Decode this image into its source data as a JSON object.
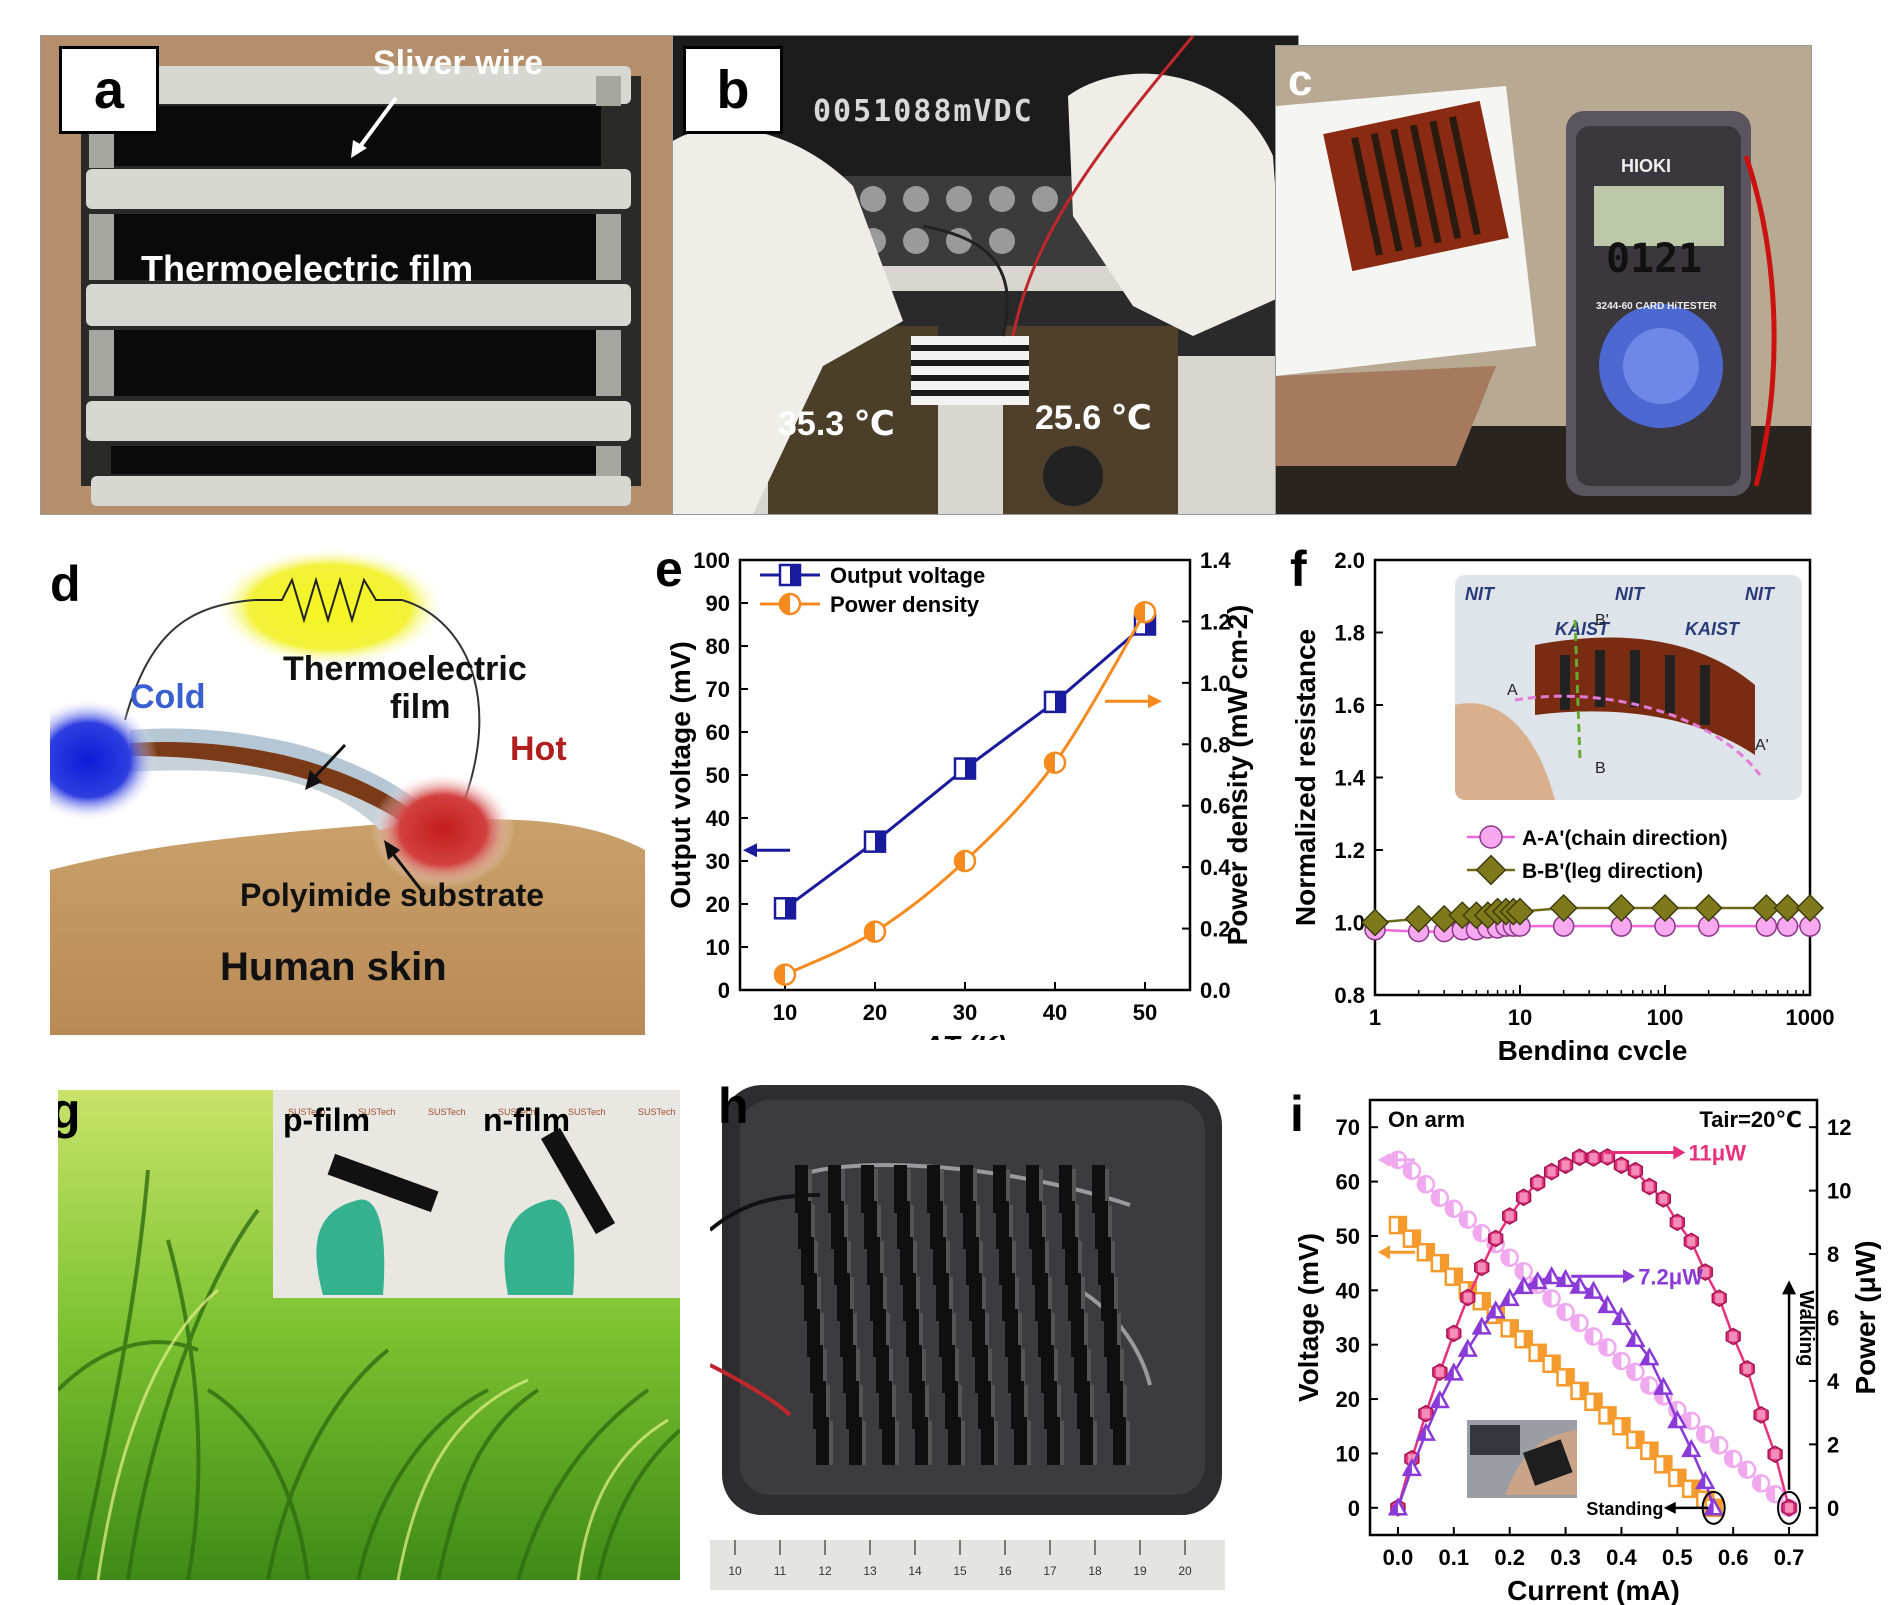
{
  "panels": {
    "a": {
      "label": "a",
      "wire_label": "Sliver wire",
      "film_label": "Thermoelectric film"
    },
    "b": {
      "label": "b",
      "display_reading": "0051088mVDC",
      "hot_temp": "35.3 ℃",
      "cold_temp": "25.6 ℃"
    },
    "c": {
      "label": "c",
      "meter_brand": "HIOKI",
      "meter_reading": "0121",
      "meter_model": "3244-60 CARD HiTESTER"
    },
    "d": {
      "label": "d",
      "cold": "Cold",
      "hot": "Hot",
      "film_line1": "Thermoelectric",
      "film_line2": "film",
      "substrate": "Polyimide substrate",
      "skin": "Human skin",
      "colors": {
        "cold": "#1a2bd6",
        "hot": "#cc1f1f",
        "skin": "#c49a64",
        "load": "#f2f21a"
      }
    },
    "e": {
      "label": "e"
    },
    "f": {
      "label": "f",
      "inset_labels": [
        "A",
        "A'",
        "B",
        "B'"
      ],
      "inset_brands": [
        "NIT",
        "KAIST"
      ]
    },
    "g": {
      "label": "g",
      "p_film": "p-film",
      "n_film": "n-film",
      "brand": "SUSTech"
    },
    "h": {
      "label": "h",
      "ruler_ticks": [
        "10",
        "11",
        "12",
        "13",
        "14",
        "15",
        "16",
        "17",
        "18",
        "19",
        "20"
      ]
    },
    "i": {
      "label": "i"
    }
  },
  "chart_data": [
    {
      "id": "e",
      "type": "line",
      "xlabel": "ΔT (K)",
      "ylabel": "Output voltage (mV)",
      "y2label": "Power density (mW cm-2)",
      "x": [
        10,
        20,
        30,
        40,
        50
      ],
      "xlim": [
        5,
        55
      ],
      "xticks": [
        10,
        20,
        30,
        40,
        50
      ],
      "ylim": [
        0,
        100
      ],
      "yticks": [
        0,
        10,
        20,
        30,
        40,
        50,
        60,
        70,
        80,
        90,
        100
      ],
      "y2lim": [
        0,
        1.4
      ],
      "y2ticks": [
        "0.0",
        "0.2",
        "0.4",
        "0.6",
        "0.8",
        "1.0",
        "1.2",
        "1.4"
      ],
      "series": [
        {
          "name": "Output voltage",
          "axis": "left",
          "color": "#1a1a9c",
          "marker": "half-square",
          "values": [
            19,
            34.5,
            51.5,
            67,
            85
          ]
        },
        {
          "name": "Power density",
          "axis": "right",
          "color": "#f58a1f",
          "marker": "half-circle",
          "values": [
            0.05,
            0.19,
            0.42,
            0.74,
            1.23
          ]
        }
      ],
      "legend": "top-left"
    },
    {
      "id": "f",
      "type": "line",
      "xlabel": "Bending cycle",
      "ylabel": "Normalized resistance",
      "xscale": "log",
      "xlim": [
        1,
        1000
      ],
      "xticks": [
        "1",
        "10",
        "100",
        "1000"
      ],
      "ylim": [
        0.8,
        2.0
      ],
      "yticks": [
        "0.8",
        "1.0",
        "1.2",
        "1.4",
        "1.6",
        "1.8",
        "2.0"
      ],
      "series": [
        {
          "name": "A-A'(chain direction)",
          "color": "#f7a8ef",
          "line": "#ee66dd",
          "marker": "circle",
          "x": [
            1,
            2,
            3,
            4,
            5,
            6,
            7,
            8,
            9,
            10,
            20,
            50,
            100,
            200,
            500,
            700,
            1000
          ],
          "values": [
            0.98,
            0.975,
            0.975,
            0.98,
            0.98,
            0.985,
            0.985,
            0.99,
            0.99,
            0.99,
            0.99,
            0.99,
            0.99,
            0.99,
            0.99,
            0.99,
            0.99
          ]
        },
        {
          "name": "B-B'(leg direction)",
          "color": "#7e7a1c",
          "line": "#6b6b1a",
          "marker": "diamond",
          "x": [
            1,
            2,
            3,
            4,
            5,
            6,
            7,
            8,
            9,
            10,
            20,
            50,
            100,
            200,
            500,
            700,
            1000
          ],
          "values": [
            1.0,
            1.01,
            1.01,
            1.02,
            1.02,
            1.02,
            1.03,
            1.03,
            1.03,
            1.03,
            1.04,
            1.04,
            1.04,
            1.04,
            1.04,
            1.04,
            1.04
          ]
        }
      ],
      "legend": "middle-right"
    },
    {
      "id": "i",
      "type": "line",
      "xlabel": "Current (mA)",
      "ylabel": "Voltage (mV)",
      "y2label": "Power (μW)",
      "xlim": [
        -0.05,
        0.75
      ],
      "xticks": [
        "0.0",
        "0.1",
        "0.2",
        "0.3",
        "0.4",
        "0.5",
        "0.6",
        "0.7"
      ],
      "ylim": [
        -5,
        75
      ],
      "yticks": [
        0,
        10,
        20,
        30,
        40,
        50,
        60,
        70
      ],
      "y2lim": [
        -0.857,
        12.857
      ],
      "y2ticks": [
        0,
        2,
        4,
        6,
        8,
        10,
        12
      ],
      "series": [
        {
          "name": "Walking voltage",
          "axis": "left",
          "color": "#f0a8ee",
          "marker": "half-circle",
          "x": [
            0.0,
            0.025,
            0.05,
            0.075,
            0.1,
            0.125,
            0.15,
            0.175,
            0.2,
            0.225,
            0.25,
            0.275,
            0.3,
            0.325,
            0.35,
            0.375,
            0.4,
            0.425,
            0.45,
            0.475,
            0.5,
            0.525,
            0.55,
            0.575,
            0.6,
            0.625,
            0.65,
            0.675,
            0.7
          ],
          "values": [
            64,
            62,
            59.5,
            57,
            55,
            53,
            50.5,
            48.5,
            46,
            43.5,
            41,
            38.5,
            36,
            34,
            31.5,
            29.5,
            27,
            25,
            22.5,
            20.5,
            18,
            16,
            13.5,
            11.5,
            9,
            7,
            4.5,
            2.5,
            0
          ]
        },
        {
          "name": "Standing voltage",
          "axis": "left",
          "color": "#f59a2c",
          "marker": "half-square",
          "x": [
            0.0,
            0.025,
            0.05,
            0.075,
            0.1,
            0.125,
            0.15,
            0.175,
            0.2,
            0.225,
            0.25,
            0.275,
            0.3,
            0.325,
            0.35,
            0.375,
            0.4,
            0.425,
            0.45,
            0.475,
            0.5,
            0.525,
            0.55,
            0.565
          ],
          "values": [
            52,
            49.5,
            47,
            45,
            42.5,
            40,
            38,
            35.5,
            33,
            31,
            28.5,
            26.5,
            24,
            21.5,
            19.5,
            17,
            15,
            12.5,
            10.5,
            8,
            5.5,
            3.5,
            1.5,
            0
          ]
        },
        {
          "name": "Walking power",
          "axis": "right",
          "color": "#e8317d",
          "marker": "hexagon",
          "peak_label": "11μW",
          "x": [
            0.0,
            0.025,
            0.05,
            0.075,
            0.1,
            0.125,
            0.15,
            0.175,
            0.2,
            0.225,
            0.25,
            0.275,
            0.3,
            0.325,
            0.35,
            0.375,
            0.4,
            0.425,
            0.45,
            0.475,
            0.5,
            0.525,
            0.55,
            0.575,
            0.6,
            0.625,
            0.65,
            0.675,
            0.7
          ],
          "values": [
            0,
            1.55,
            2.97,
            4.28,
            5.5,
            6.63,
            7.58,
            8.49,
            9.2,
            9.79,
            10.25,
            10.6,
            10.8,
            11.05,
            11.03,
            11.06,
            10.8,
            10.63,
            10.13,
            9.74,
            9.0,
            8.4,
            7.43,
            6.61,
            5.4,
            4.38,
            2.93,
            1.69,
            0
          ]
        },
        {
          "name": "Standing power",
          "axis": "right",
          "color": "#8a3ad6",
          "marker": "half-triangle",
          "peak_label": "7.2μW",
          "x": [
            0.0,
            0.025,
            0.05,
            0.075,
            0.1,
            0.125,
            0.15,
            0.175,
            0.2,
            0.225,
            0.25,
            0.275,
            0.3,
            0.325,
            0.35,
            0.375,
            0.4,
            0.425,
            0.45,
            0.475,
            0.5,
            0.525,
            0.55,
            0.565
          ],
          "values": [
            0,
            1.24,
            2.35,
            3.38,
            4.25,
            5.0,
            5.7,
            6.21,
            6.6,
            6.98,
            7.13,
            7.29,
            7.2,
            6.99,
            6.83,
            6.38,
            6.0,
            5.31,
            4.73,
            3.8,
            2.75,
            1.84,
            0.83,
            0
          ]
        }
      ],
      "annotations": [
        "On arm",
        "Tair=20℃",
        "Walking",
        "Standing"
      ]
    }
  ]
}
